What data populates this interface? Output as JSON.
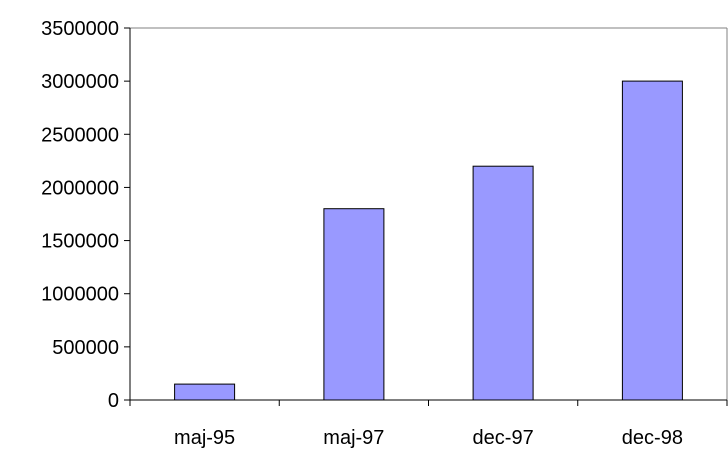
{
  "chart_data": {
    "type": "bar",
    "categories": [
      "maj-95",
      "maj-97",
      "dec-97",
      "dec-98"
    ],
    "values": [
      150000,
      1800000,
      2200000,
      3000000
    ],
    "yticks": [
      "0",
      "500000",
      "1000000",
      "1500000",
      "2000000",
      "2500000",
      "3000000",
      "3500000"
    ],
    "ylim": [
      0,
      3500000
    ],
    "bar_color": "#9999ff",
    "bar_stroke": "#000000",
    "axis_color": "#000000",
    "plot_border_color": "#808080",
    "grid": false,
    "legend": "none"
  }
}
